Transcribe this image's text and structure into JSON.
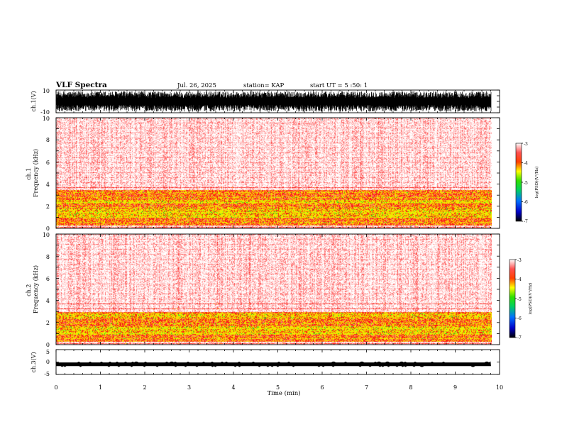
{
  "header": {
    "title": "VLF Spectra",
    "date": "Jul. 26, 2025",
    "station": "station= KAP",
    "start": "start UT =  5 :50: 1"
  },
  "chart_data": {
    "type": "heatmap",
    "title": "VLF Spectra",
    "xlabel": "Time (min)",
    "xlim": [
      0,
      10
    ],
    "x_ticks": [
      "0",
      "1",
      "2",
      "3",
      "4",
      "5",
      "6",
      "7",
      "8",
      "9",
      "10"
    ],
    "data_end_min": 9.8,
    "panels": [
      {
        "name": "ch1-waveform",
        "type": "line",
        "ylabel": "ch.1(V)",
        "ylim": [
          -10,
          10
        ],
        "y_ticks": [
          "10",
          "-10"
        ],
        "baseline": 0,
        "amplitude": 9
      },
      {
        "name": "ch1-spectrogram",
        "type": "heatmap",
        "ylabel": "ch.1\nFrequency (kHz)",
        "ylim": [
          0,
          10
        ],
        "y_ticks": [
          "0",
          "2",
          "4",
          "6",
          "8",
          "10"
        ],
        "colorbar": {
          "label": "log(PSD)(V²/Hz)",
          "range": [
            -7,
            -3
          ],
          "ticks": [
            "-3",
            "-4",
            "-5",
            "-6",
            "-7"
          ]
        },
        "intense_bands_khz": [
          [
            0.3,
            3.5
          ]
        ],
        "peak_bands_khz": [
          [
            1.0,
            1.8
          ],
          [
            2.3,
            2.6
          ]
        ]
      },
      {
        "name": "ch2-spectrogram",
        "type": "heatmap",
        "ylabel": "ch.2\nFrequency (kHz)",
        "ylim": [
          0,
          10
        ],
        "y_ticks": [
          "0",
          "2",
          "4",
          "6",
          "8",
          "10"
        ],
        "colorbar": {
          "label": "log(PSD)(V²/Hz)",
          "range": [
            -7,
            -3
          ],
          "ticks": [
            "-3",
            "-4",
            "-5",
            "-6",
            "-7"
          ]
        },
        "intense_bands_khz": [
          [
            0.3,
            3.0
          ]
        ],
        "peak_bands_khz": [
          [
            0.9,
            1.7
          ],
          [
            2.5,
            2.8
          ]
        ]
      },
      {
        "name": "ch3-waveform",
        "type": "line",
        "ylabel": "ch.3(V)",
        "ylim": [
          -5,
          5
        ],
        "y_ticks": [
          "5",
          "0",
          "-5"
        ],
        "baseline": -0.9,
        "amplitude": 0.6
      }
    ]
  }
}
